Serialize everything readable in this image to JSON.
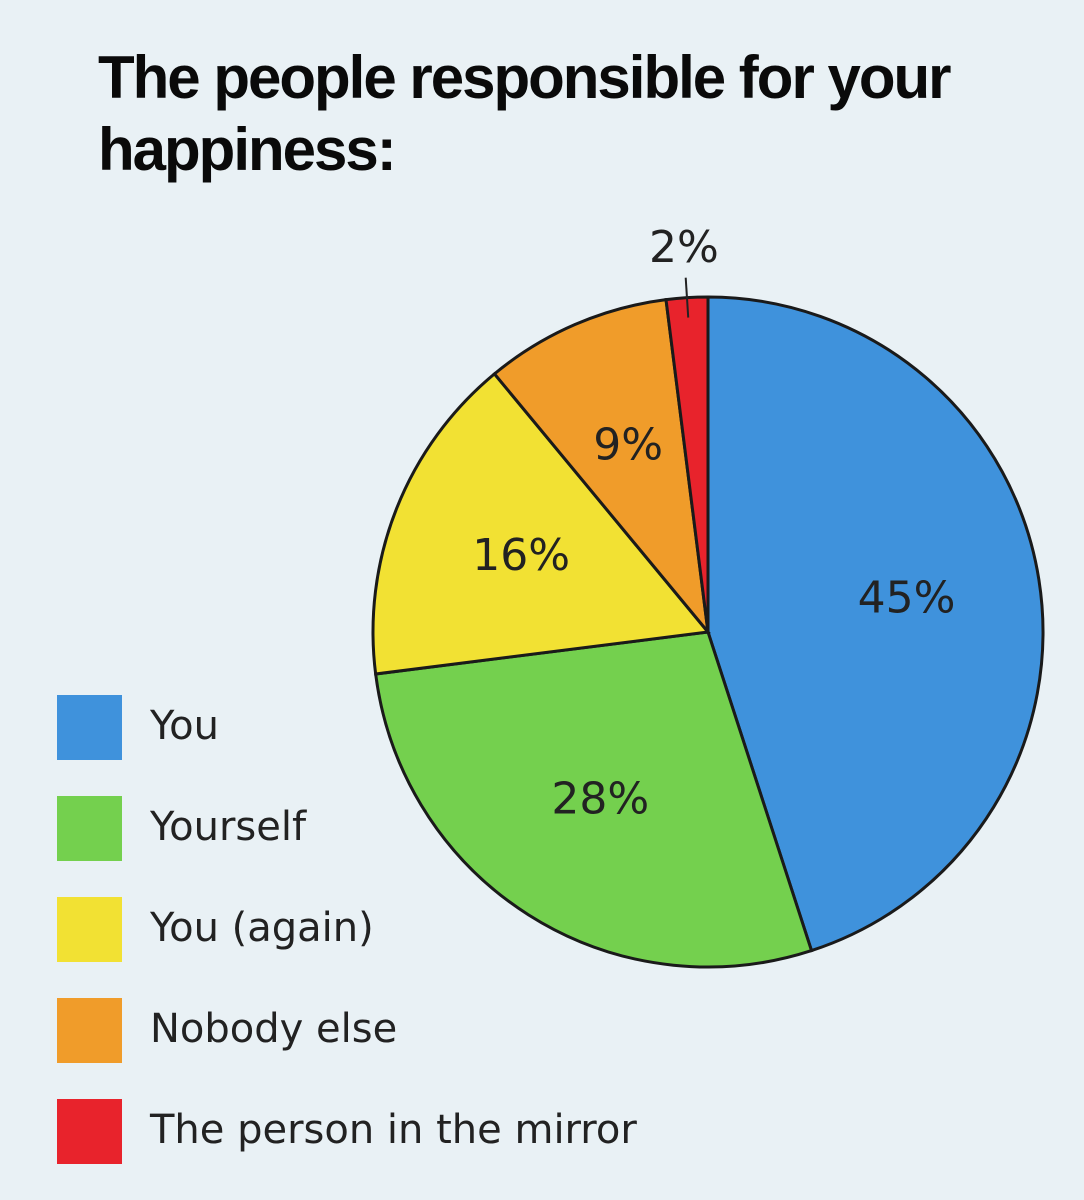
{
  "chart_data": {
    "type": "pie",
    "title": "The people responsible for your happiness:",
    "categories": [
      "You",
      "Yourself",
      "You (again)",
      "Nobody else",
      "The person in the mirror"
    ],
    "values": [
      45,
      28,
      16,
      9,
      2
    ],
    "value_labels": [
      "45%",
      "28%",
      "16%",
      "9%",
      "2%"
    ],
    "colors": [
      "#3f92dc",
      "#74d04e",
      "#f2e133",
      "#f09c2a",
      "#e8232c"
    ],
    "legend": "bottom-left"
  }
}
